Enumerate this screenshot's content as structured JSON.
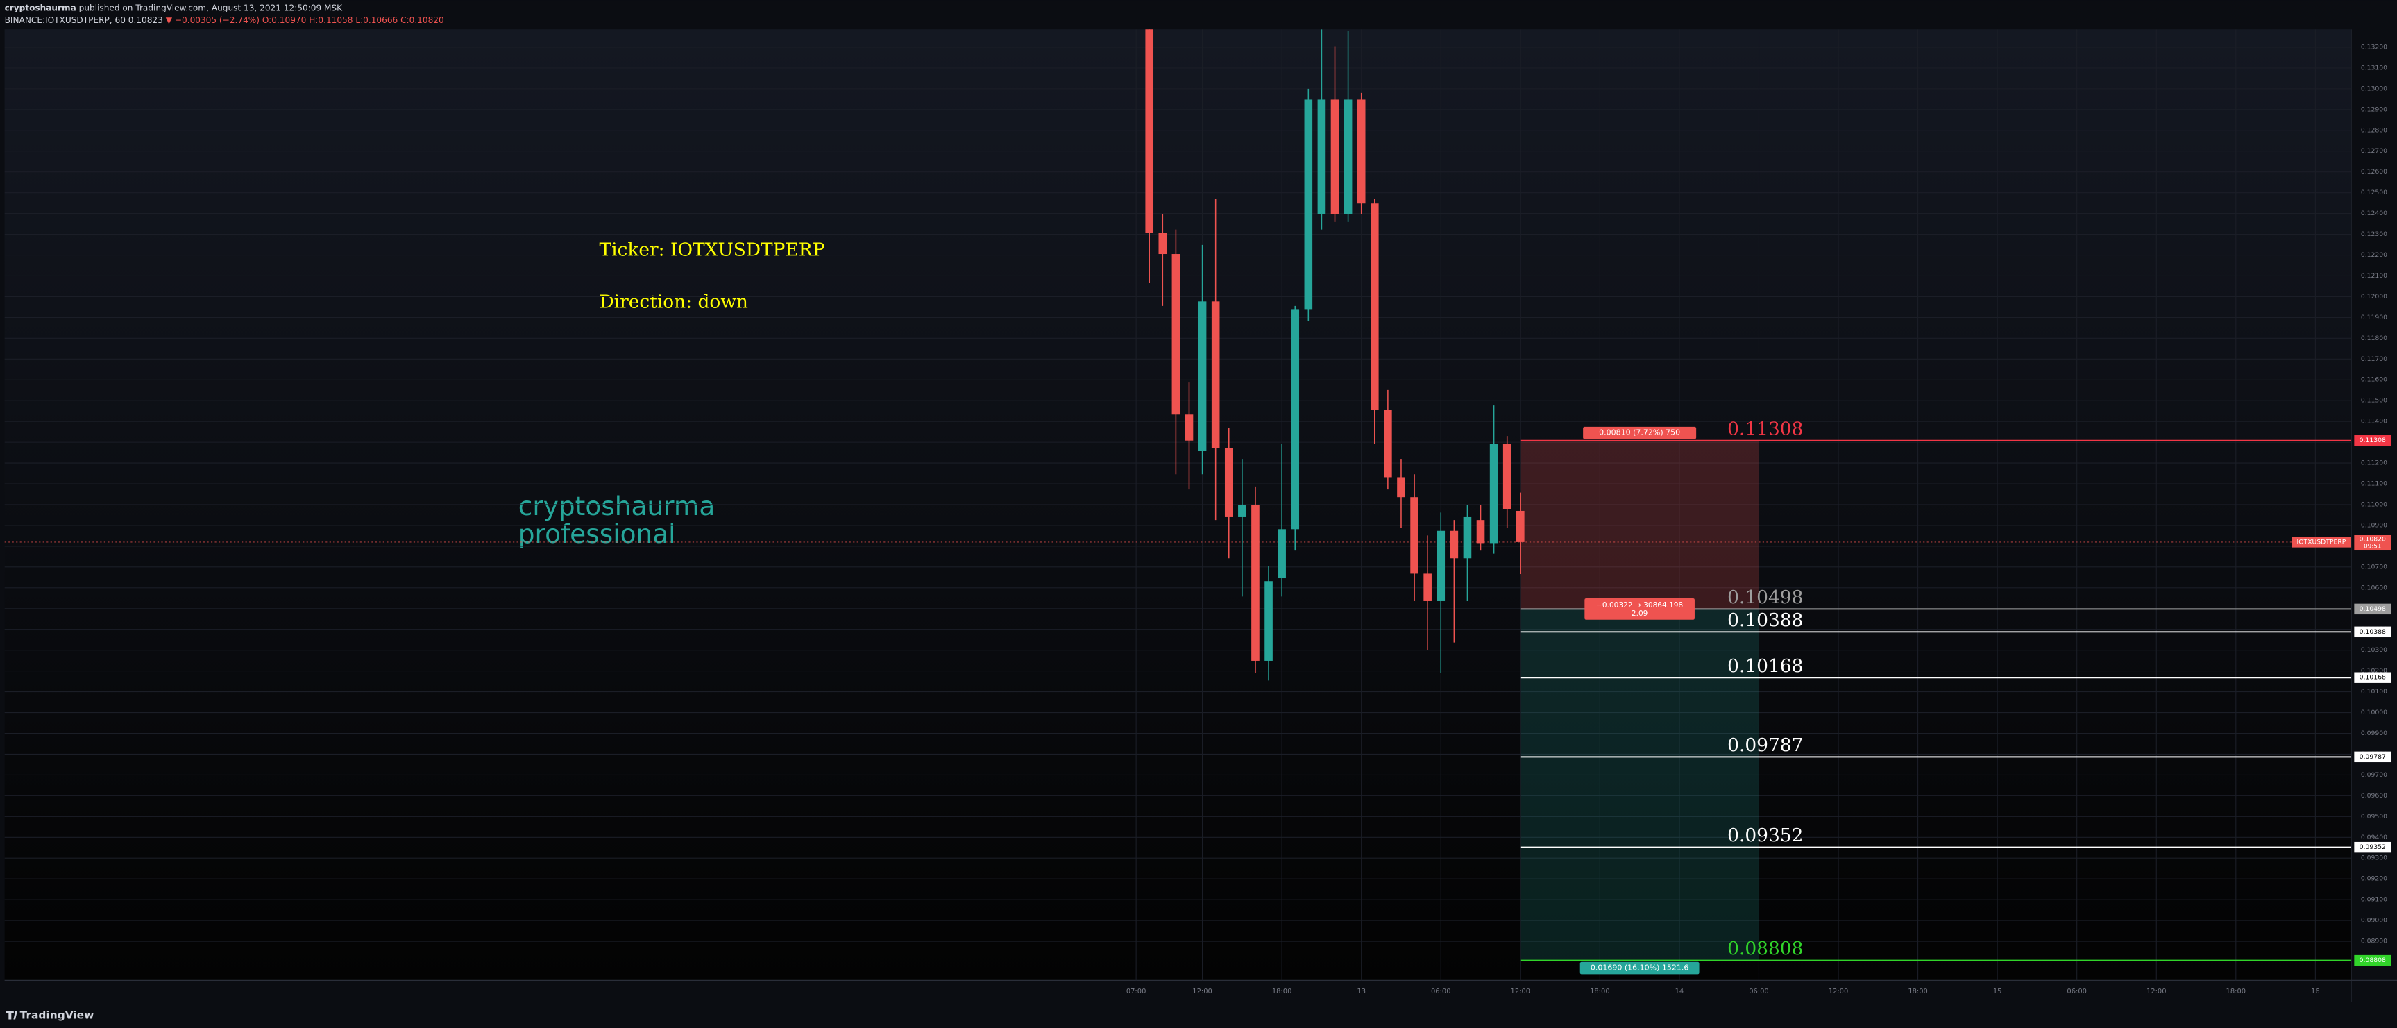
{
  "header": {
    "author": "cryptoshaurma",
    "published": "published on TradingView.com, August 13, 2021 12:50:09 MSK",
    "symbol": "BINANCE:IOTXUSDTPERP, 60",
    "price": "0.10823",
    "change": "▼ −0.00305 (−2.74%)",
    "ohlc": [
      "O:0.10970",
      "H:0.11058",
      "L:0.10666",
      "C:0.10820"
    ]
  },
  "chart_data": {
    "type": "candlestick",
    "x": [
      8,
      9,
      10,
      11,
      12,
      13,
      14,
      15,
      16,
      17,
      18,
      19,
      20,
      21,
      22,
      23,
      24,
      25,
      26,
      27,
      28,
      29,
      30,
      31,
      32,
      33,
      34,
      35,
      36
    ],
    "open": [
      0.1335,
      0.12308,
      0.12205,
      0.11433,
      0.11257,
      0.11977,
      0.11271,
      0.1094,
      0.10999,
      0.10249,
      0.10646,
      0.10882,
      0.1194,
      0.12396,
      0.12948,
      0.12396,
      0.12948,
      0.12448,
      0.11455,
      0.11132,
      0.11036,
      0.10668,
      0.10536,
      0.10874,
      0.10742,
      0.10926,
      0.10815,
      0.11293,
      0.1097
    ],
    "high": [
      0.134,
      0.12396,
      0.12323,
      0.11587,
      0.12249,
      0.1247,
      0.11367,
      0.1122,
      0.11087,
      0.10705,
      0.11293,
      0.11955,
      0.13,
      0.13286,
      0.13205,
      0.13279,
      0.1298,
      0.1247,
      0.11551,
      0.1122,
      0.11146,
      0.10852,
      0.10962,
      0.10926,
      0.10999,
      0.10999,
      0.11477,
      0.1133,
      0.11058
    ],
    "low": [
      0.12065,
      0.11955,
      0.11146,
      0.11073,
      0.11146,
      0.10926,
      0.10742,
      0.10558,
      0.1019,
      0.10154,
      0.10558,
      0.10779,
      0.11882,
      0.12323,
      0.12359,
      0.12359,
      0.12396,
      0.11293,
      0.11073,
      0.10889,
      0.10536,
      0.10301,
      0.1019,
      0.10337,
      0.10536,
      0.10779,
      0.10764,
      0.10889,
      0.10666
    ],
    "close": [
      0.12308,
      0.12205,
      0.11433,
      0.11308,
      0.11977,
      0.11271,
      0.1094,
      0.10999,
      0.10249,
      0.10632,
      0.10882,
      0.1194,
      0.12948,
      0.12948,
      0.12396,
      0.12948,
      0.12448,
      0.11455,
      0.11132,
      0.11036,
      0.10668,
      0.10536,
      0.10874,
      0.10742,
      0.1094,
      0.10815,
      0.11293,
      0.10977,
      0.1082
    ],
    "up_color": "#26a69a",
    "down_color": "#ef5350",
    "grid": true,
    "grid_color": "#1b1e27",
    "xlim": [
      -78.4,
      98.7
    ],
    "ylim": [
      0.08712,
      0.13286
    ],
    "xticks": [
      {
        "value": 7,
        "label": "07:00"
      },
      {
        "value": 12,
        "label": "12:00"
      },
      {
        "value": 18,
        "label": "18:00"
      },
      {
        "value": 24,
        "label": "13"
      },
      {
        "value": 30,
        "label": "06:00"
      },
      {
        "value": 36,
        "label": "12:00"
      },
      {
        "value": 42,
        "label": "18:00"
      },
      {
        "value": 48,
        "label": "14"
      },
      {
        "value": 54,
        "label": "06:00"
      },
      {
        "value": 60,
        "label": "12:00"
      },
      {
        "value": 66,
        "label": "18:00"
      },
      {
        "value": 72,
        "label": "15"
      },
      {
        "value": 78,
        "label": "06:00"
      },
      {
        "value": 84,
        "label": "12:00"
      },
      {
        "value": 90,
        "label": "18:00"
      },
      {
        "value": 96,
        "label": "16"
      }
    ],
    "yticks": [
      {
        "value": 0.089,
        "label": "0.08900"
      },
      {
        "value": 0.09,
        "label": "0.09000"
      },
      {
        "value": 0.091,
        "label": "0.09100"
      },
      {
        "value": 0.092,
        "label": "0.09200"
      },
      {
        "value": 0.093,
        "label": "0.09300"
      },
      {
        "value": 0.094,
        "label": "0.09400"
      },
      {
        "value": 0.095,
        "label": "0.09500"
      },
      {
        "value": 0.096,
        "label": "0.09600"
      },
      {
        "value": 0.097,
        "label": "0.09700"
      },
      {
        "value": 0.098,
        "label": "0.09800"
      },
      {
        "value": 0.099,
        "label": "0.09900"
      },
      {
        "value": 0.1,
        "label": "0.10000"
      },
      {
        "value": 0.101,
        "label": "0.10100"
      },
      {
        "value": 0.102,
        "label": "0.10200"
      },
      {
        "value": 0.103,
        "label": "0.10300"
      },
      {
        "value": 0.104,
        "label": "0.10400"
      },
      {
        "value": 0.105,
        "label": "0.10500"
      },
      {
        "value": 0.106,
        "label": "0.10600"
      },
      {
        "value": 0.107,
        "label": "0.10700"
      },
      {
        "value": 0.108,
        "label": "0.10800"
      },
      {
        "value": 0.109,
        "label": "0.10900"
      },
      {
        "value": 0.11,
        "label": "0.11000"
      },
      {
        "value": 0.111,
        "label": "0.11100"
      },
      {
        "value": 0.112,
        "label": "0.11200"
      },
      {
        "value": 0.113,
        "label": "0.11300"
      },
      {
        "value": 0.114,
        "label": "0.11400"
      },
      {
        "value": 0.115,
        "label": "0.11500"
      },
      {
        "value": 0.116,
        "label": "0.11600"
      },
      {
        "value": 0.117,
        "label": "0.11700"
      },
      {
        "value": 0.118,
        "label": "0.11800"
      },
      {
        "value": 0.119,
        "label": "0.11900"
      },
      {
        "value": 0.12,
        "label": "0.12000"
      },
      {
        "value": 0.121,
        "label": "0.12100"
      },
      {
        "value": 0.122,
        "label": "0.12200"
      },
      {
        "value": 0.123,
        "label": "0.12300"
      },
      {
        "value": 0.124,
        "label": "0.12400"
      },
      {
        "value": 0.125,
        "label": "0.12500"
      },
      {
        "value": 0.126,
        "label": "0.12600"
      },
      {
        "value": 0.127,
        "label": "0.12700"
      },
      {
        "value": 0.128,
        "label": "0.12800"
      },
      {
        "value": 0.129,
        "label": "0.12900"
      },
      {
        "value": 0.13,
        "label": "0.13000"
      },
      {
        "value": 0.131,
        "label": "0.13100"
      },
      {
        "value": 0.132,
        "label": "0.13200"
      }
    ],
    "last_price": {
      "value": 0.1082,
      "label": "0.10820"
    },
    "symbol_tag": "IOTXUSDTPERP",
    "countdown": "09:51",
    "last_color": "#ef5350",
    "levels": {
      "values": [
        0.11308,
        0.10498,
        0.10388,
        0.10168,
        0.09787,
        0.09352,
        0.08808
      ],
      "colors": [
        "#f23645",
        "#9e9e9e",
        "#ffffff",
        "#ffffff",
        "#ffffff",
        "#ffffff",
        "#31d42a"
      ]
    },
    "position": {
      "entry": 0.10498,
      "stop": 0.11308,
      "target": 0.08808,
      "x_start": 36,
      "x_end": 54,
      "stop_label": "0.00810 (7.72%) 750",
      "mid_label": [
        "−0.00322 → 30864.198",
        "2.09"
      ],
      "target_label": "0.01690 (16.10%) 1521.6"
    },
    "annotations": {
      "ticker": "Ticker: IOTXUSDTPERP",
      "direction": "Direction: down",
      "watermark": [
        "cryptoshaurma",
        "professional"
      ]
    }
  },
  "footer": {
    "brand": "TradingView"
  }
}
